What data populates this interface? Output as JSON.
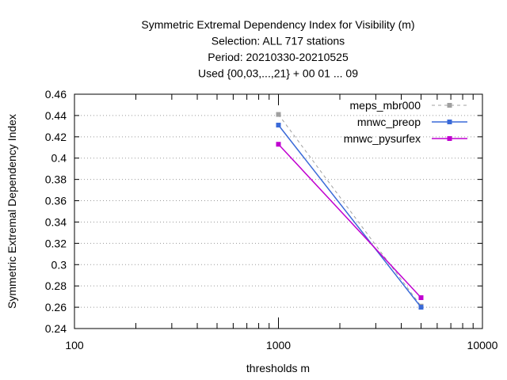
{
  "chart_data": {
    "type": "line",
    "title_lines": [
      "Symmetric Extremal Dependency Index  for Visibility (m)",
      "Selection: ALL     717 stations",
      "Period: 20210330-20210525",
      "Used {00,03,...,21} + 00 01 ... 09"
    ],
    "xlabel": "thresholds m",
    "ylabel": "Symmetric Extremal Dependency Index",
    "x_scale": "log",
    "xlim": [
      100,
      10000
    ],
    "ylim": [
      0.24,
      0.46
    ],
    "x_ticks": [
      100,
      1000,
      10000
    ],
    "x_tick_labels": [
      "100",
      "1000",
      "10000"
    ],
    "y_ticks": [
      0.24,
      0.26,
      0.28,
      0.3,
      0.32,
      0.34,
      0.36,
      0.38,
      0.4,
      0.42,
      0.44,
      0.46
    ],
    "y_tick_labels": [
      "0.24",
      "0.26",
      "0.28",
      "0.3",
      "0.32",
      "0.34",
      "0.36",
      "0.38",
      "0.4",
      "0.42",
      "0.44",
      "0.46"
    ],
    "grid": true,
    "legend_position": "top-right",
    "series": [
      {
        "name": "meps_mbr000",
        "color": "#a0a0a0",
        "dashed": true,
        "x": [
          1000,
          5000
        ],
        "values": [
          0.441,
          0.261
        ]
      },
      {
        "name": "mnwc_preop",
        "color": "#3a6ad8",
        "dashed": false,
        "x": [
          1000,
          5000
        ],
        "values": [
          0.431,
          0.26
        ]
      },
      {
        "name": "mnwc_pysurfex",
        "color": "#c000d0",
        "dashed": false,
        "x": [
          1000,
          5000
        ],
        "values": [
          0.413,
          0.269
        ]
      }
    ]
  }
}
